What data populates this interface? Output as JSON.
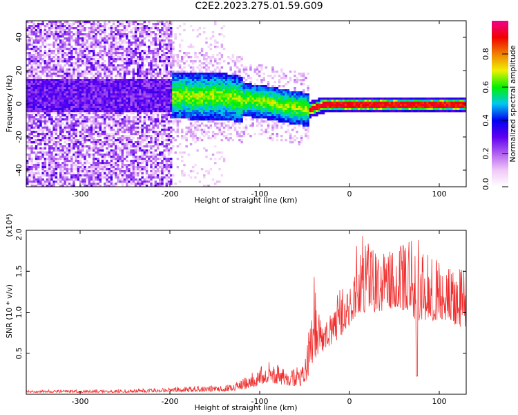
{
  "title": "C2E2.2023.275.01.59.G09",
  "chart_data": [
    {
      "type": "heatmap",
      "xlabel": "Height of straight line (km)",
      "ylabel": "Frequency (Hz)",
      "xlim": [
        -360,
        130
      ],
      "ylim": [
        -50,
        50
      ],
      "x_ticks": [
        -300,
        -200,
        -100,
        0,
        100
      ],
      "y_ticks": [
        -40,
        -20,
        0,
        20,
        40
      ],
      "grid": false,
      "colorbar": {
        "label": "Normalized spectral amplitude",
        "range": [
          0,
          1
        ],
        "ticks": [
          "0.0",
          "0.2",
          "0.4",
          "0.6",
          "0.8"
        ],
        "colors": [
          "#ffffff",
          "#f0c8f8",
          "#b060f0",
          "#6000f0",
          "#0000f0",
          "#00c8f0",
          "#00f000",
          "#f0f000",
          "#f08000",
          "#f00000",
          "#f00090"
        ]
      },
      "ridge_center_hz": [
        {
          "x": -210,
          "y": 6
        },
        {
          "x": -170,
          "y": 5
        },
        {
          "x": -140,
          "y": 5
        },
        {
          "x": -120,
          "y": 3
        },
        {
          "x": -100,
          "y": 2
        },
        {
          "x": -80,
          "y": 0
        },
        {
          "x": -60,
          "y": -2
        },
        {
          "x": -45,
          "y": -3
        },
        {
          "x": -30,
          "y": 0
        },
        {
          "x": 0,
          "y": 0
        },
        {
          "x": 130,
          "y": 0
        }
      ]
    },
    {
      "type": "line",
      "xlabel": "Height of straight line (km)",
      "ylabel": "SNR (10 * v/v)",
      "y_scale_label": "(x10⁴)",
      "xlim": [
        -360,
        130
      ],
      "ylim": [
        0,
        2.0
      ],
      "x_ticks": [
        -300,
        -200,
        -100,
        0,
        100
      ],
      "y_ticks": [
        "0.5",
        "1.0",
        "1.5",
        "2.0"
      ],
      "grid": false,
      "color": "#f03030",
      "series": [
        {
          "envelope": [
            {
              "x": -360,
              "base": 0.02,
              "peak": 0.05
            },
            {
              "x": -250,
              "base": 0.02,
              "peak": 0.06
            },
            {
              "x": -180,
              "base": 0.03,
              "peak": 0.1
            },
            {
              "x": -130,
              "base": 0.04,
              "peak": 0.12
            },
            {
              "x": -110,
              "base": 0.08,
              "peak": 0.25
            },
            {
              "x": -90,
              "base": 0.15,
              "peak": 0.42
            },
            {
              "x": -70,
              "base": 0.1,
              "peak": 0.3
            },
            {
              "x": -50,
              "base": 0.1,
              "peak": 0.35
            },
            {
              "x": -40,
              "base": 0.4,
              "peak": 1.5
            },
            {
              "x": -30,
              "base": 0.5,
              "peak": 0.9
            },
            {
              "x": -10,
              "base": 0.7,
              "peak": 1.3
            },
            {
              "x": 0,
              "base": 0.85,
              "peak": 1.25
            },
            {
              "x": 10,
              "base": 1.0,
              "peak": 2.0
            },
            {
              "x": 30,
              "base": 1.0,
              "peak": 1.7
            },
            {
              "x": 55,
              "base": 1.05,
              "peak": 1.8
            },
            {
              "x": 75,
              "base": 0.9,
              "peak": 1.9
            },
            {
              "x": 100,
              "base": 0.9,
              "peak": 1.6
            },
            {
              "x": 130,
              "base": 0.8,
              "peak": 1.5
            }
          ]
        }
      ]
    }
  ]
}
